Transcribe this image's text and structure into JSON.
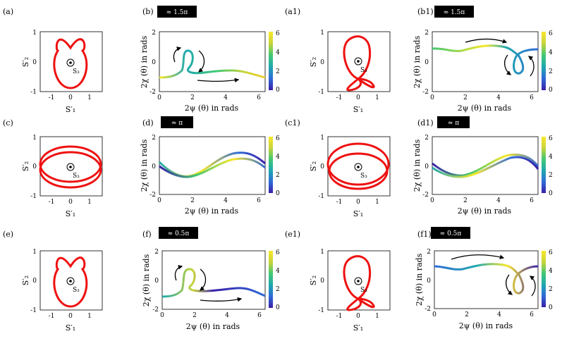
{
  "figure": {
    "panels": [
      {
        "id": "a",
        "label": "(a)",
        "type": "stokes"
      },
      {
        "id": "b",
        "label": "(b)",
        "type": "phase",
        "badge": "≈ 1.5π"
      },
      {
        "id": "a1",
        "label": "(a1)",
        "type": "stokes"
      },
      {
        "id": "b1",
        "label": "(b1)",
        "type": "phase",
        "badge": "≈ 1.5π"
      },
      {
        "id": "c",
        "label": "(c)",
        "type": "stokes"
      },
      {
        "id": "d",
        "label": "(d)",
        "type": "phase",
        "badge": "≈ π"
      },
      {
        "id": "c1",
        "label": "(c1)",
        "type": "stokes"
      },
      {
        "id": "d1",
        "label": "(d1)",
        "type": "phase",
        "badge": "≈ π"
      },
      {
        "id": "e",
        "label": "(e)",
        "type": "stokes"
      },
      {
        "id": "f",
        "label": "(f)",
        "type": "phase",
        "badge": "≈ 0.5π"
      },
      {
        "id": "e1",
        "label": "(e1)",
        "type": "stokes"
      },
      {
        "id": "f1",
        "label": "(f1)",
        "type": "phase",
        "badge": "≈ 0.5π"
      }
    ],
    "stokes_axes": {
      "xlabel": "S′₁",
      "ylabel": "S′₂",
      "center_label": "S₃",
      "xlim": [
        -1.6,
        1.6
      ],
      "ylim": [
        -1,
        1
      ],
      "xticks": [
        "-1",
        "0",
        "1"
      ],
      "yticks": [
        "1",
        "0",
        "-1"
      ]
    },
    "phase_axes": {
      "xlabel": "2ψ (θ) in rads",
      "ylabel": "2χ (θ) in rads",
      "xlim": [
        0,
        6.4
      ],
      "ylim": [
        -2,
        2
      ],
      "xticks": [
        "0",
        "2",
        "4",
        "6"
      ],
      "yticks": [
        "2",
        "0",
        "-2"
      ],
      "colorbar_ticks": [
        "6",
        "4",
        "2",
        "0"
      ]
    },
    "colors": {
      "curve": "#ee1111",
      "colormap": [
        "#3a1fa8",
        "#2f6bd6",
        "#1fa8b0",
        "#43c873",
        "#c8d43a",
        "#f8e82a"
      ]
    }
  }
}
